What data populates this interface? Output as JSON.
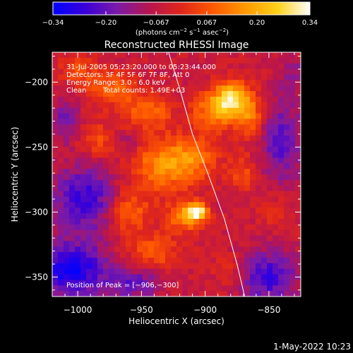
{
  "chart_data": {
    "type": "heatmap",
    "title": "Reconstructed RHESSI Image",
    "xlabel": "Heliocentric X (arcsec)",
    "ylabel": "Heliocentric Y (arcsec)",
    "xlim": [
      -1020,
      -825
    ],
    "ylim": [
      -365,
      -177
    ],
    "x_ticks": [
      -1000,
      -950,
      -900,
      -850
    ],
    "x_tick_labels": [
      "−1000",
      "−950",
      "−900",
      "−850"
    ],
    "y_ticks": [
      -350,
      -300,
      -250,
      -200
    ],
    "y_tick_labels": [
      "−350",
      "−300",
      "−250",
      "−200"
    ],
    "colorbar": {
      "min": -0.34,
      "max": 0.34,
      "ticks": [
        -0.34,
        -0.2,
        -0.067,
        0.067,
        0.2,
        0.34
      ],
      "tick_labels": [
        "−0.34",
        "−0.20",
        "−0.067",
        "0.067",
        "0.20",
        "0.34"
      ],
      "unit_label_parts": [
        "(photons cm",
        "−2",
        " s",
        "−1",
        " asec",
        "−2",
        ")"
      ],
      "colors": [
        "#0000ff",
        "#3a00d8",
        "#7a1aa8",
        "#b8154e",
        "#e0261a",
        "#ff5a00",
        "#ff9a00",
        "#ffd21a",
        "#ffffff"
      ]
    },
    "annotations": {
      "time_range": "31-Jul-2005 05:23:20.000 to 05:23:44.000",
      "detectors": "Detectors: 3F 4F 5F 6F 7F 8F, Att 0",
      "energy_range": "Energy Range: 3.0 - 6.0 keV",
      "clean": "Clean",
      "total_counts": "Total counts: 1.49E+03",
      "peak_position": "Position of Peak = [−906,−300]"
    },
    "limb_curve": [
      {
        "x": -931,
        "y": -170
      },
      {
        "x": -920,
        "y": -205
      },
      {
        "x": -910,
        "y": -240
      },
      {
        "x": -898,
        "y": -270
      },
      {
        "x": -885,
        "y": -305
      },
      {
        "x": -875,
        "y": -340
      },
      {
        "x": -869,
        "y": -365
      }
    ],
    "sources": [
      {
        "x": -906,
        "y": -300,
        "value": 0.34,
        "sx": 5,
        "sy": 4
      },
      {
        "x": -915,
        "y": -303,
        "value": 0.22,
        "sx": 10,
        "sy": 8
      },
      {
        "x": -880,
        "y": -212,
        "value": 0.26,
        "sx": 9,
        "sy": 9
      },
      {
        "x": -892,
        "y": -222,
        "value": 0.2,
        "sx": 12,
        "sy": 10
      },
      {
        "x": -865,
        "y": -225,
        "value": 0.18,
        "sx": 8,
        "sy": 12
      },
      {
        "x": -945,
        "y": -222,
        "value": 0.16,
        "sx": 13,
        "sy": 10
      },
      {
        "x": -975,
        "y": -205,
        "value": 0.15,
        "sx": 13,
        "sy": 9
      },
      {
        "x": -935,
        "y": -265,
        "value": 0.18,
        "sx": 16,
        "sy": 14
      },
      {
        "x": -910,
        "y": -258,
        "value": 0.16,
        "sx": 14,
        "sy": 12
      },
      {
        "x": -960,
        "y": -300,
        "value": 0.15,
        "sx": 11,
        "sy": 12
      },
      {
        "x": -940,
        "y": -330,
        "value": 0.12,
        "sx": 14,
        "sy": 10
      },
      {
        "x": -985,
        "y": -245,
        "value": 0.11,
        "sx": 10,
        "sy": 9
      },
      {
        "x": -870,
        "y": -270,
        "value": 0.1,
        "sx": 8,
        "sy": 10
      },
      {
        "x": -1000,
        "y": -190,
        "value": 0.12,
        "sx": 9,
        "sy": 8
      },
      {
        "x": -845,
        "y": -300,
        "value": 0.08,
        "sx": 8,
        "sy": 8
      },
      {
        "x": -880,
        "y": -345,
        "value": 0.07,
        "sx": 9,
        "sy": 8
      },
      {
        "x": -995,
        "y": -290,
        "value": -0.2,
        "sx": 18,
        "sy": 18
      },
      {
        "x": -1005,
        "y": -345,
        "value": -0.26,
        "sx": 20,
        "sy": 15
      },
      {
        "x": -955,
        "y": -355,
        "value": -0.15,
        "sx": 14,
        "sy": 8
      },
      {
        "x": -840,
        "y": -245,
        "value": -0.16,
        "sx": 12,
        "sy": 22
      },
      {
        "x": -850,
        "y": -350,
        "value": -0.2,
        "sx": 16,
        "sy": 14
      },
      {
        "x": -1010,
        "y": -230,
        "value": -0.12,
        "sx": 8,
        "sy": 12
      },
      {
        "x": -960,
        "y": -245,
        "value": -0.08,
        "sx": 6,
        "sy": 6
      },
      {
        "x": -830,
        "y": -195,
        "value": -0.08,
        "sx": 8,
        "sy": 10
      }
    ]
  },
  "footer": {
    "date": "1-May-2022 10:23"
  }
}
